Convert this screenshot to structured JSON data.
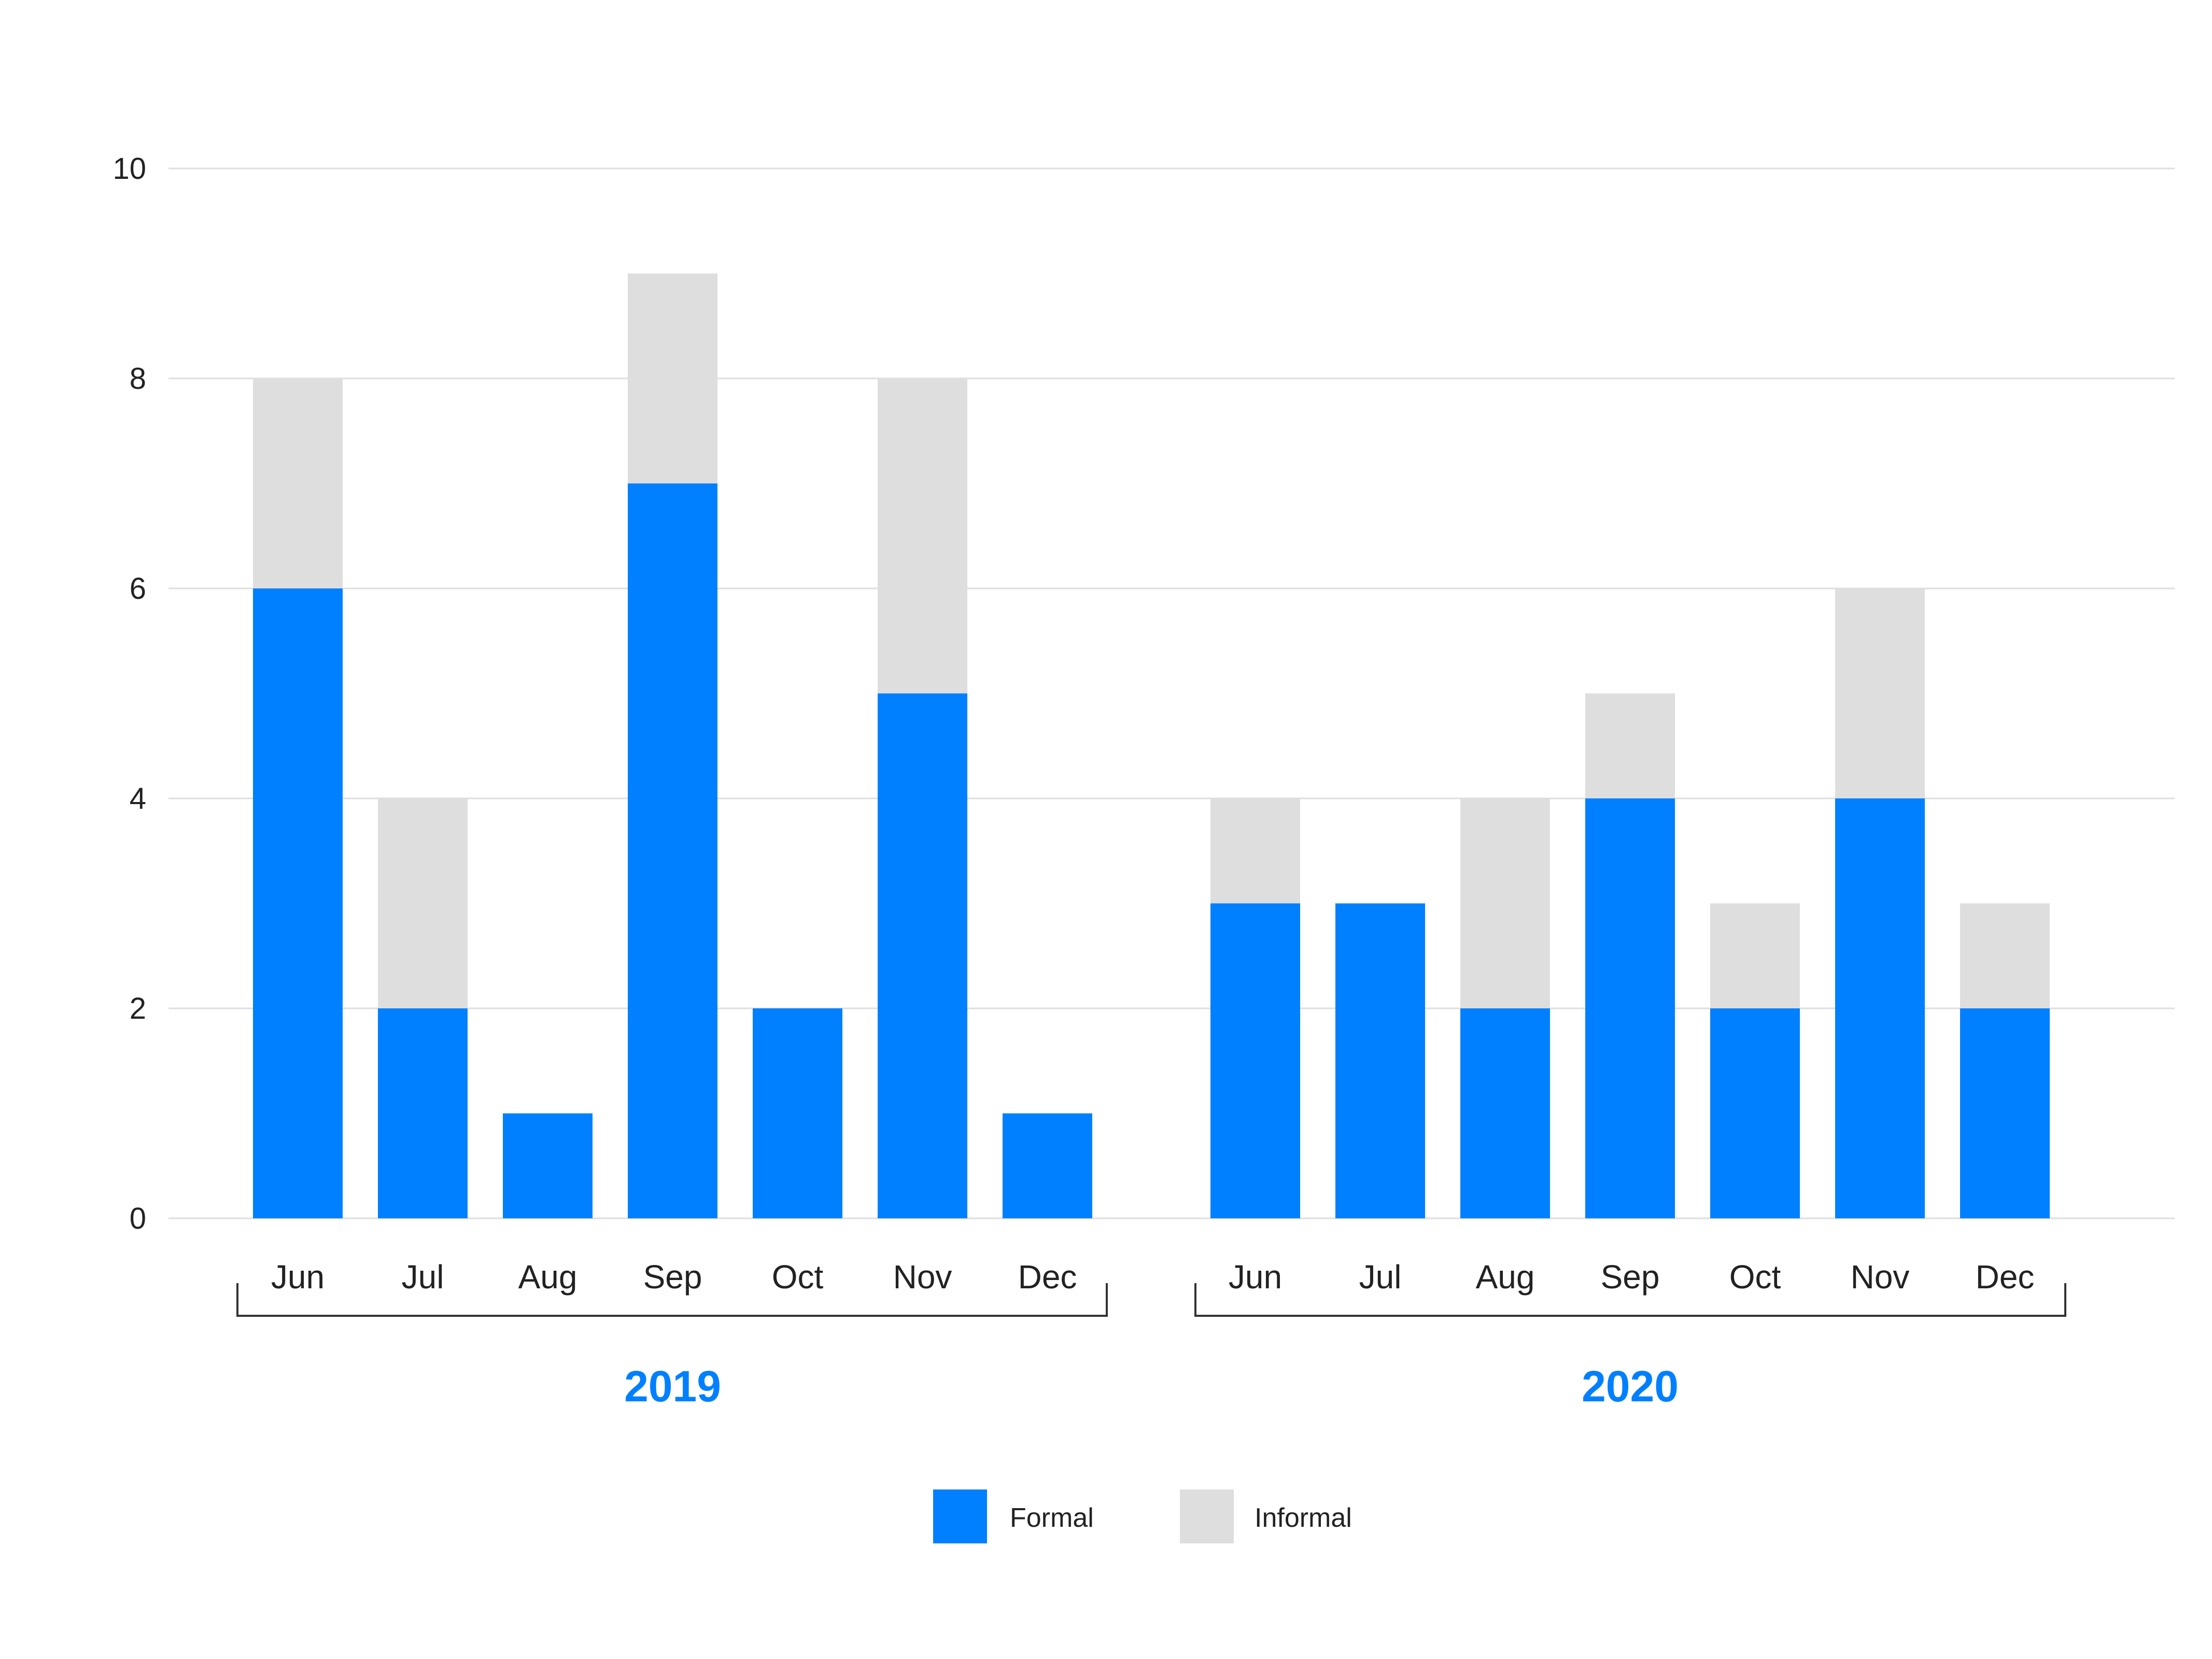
{
  "chart_data": {
    "type": "bar",
    "stacked": true,
    "groups": [
      {
        "label": "2019",
        "categories": [
          "Jun",
          "Jul",
          "Aug",
          "Sep",
          "Oct",
          "Nov",
          "Dec"
        ],
        "series": [
          {
            "name": "Formal",
            "values": [
              6,
              2,
              1,
              7,
              2,
              5,
              1
            ]
          },
          {
            "name": "Informal",
            "values": [
              2,
              2,
              0,
              2,
              0,
              3,
              0
            ]
          }
        ]
      },
      {
        "label": "2020",
        "categories": [
          "Jun",
          "Jul",
          "Aug",
          "Sep",
          "Oct",
          "Nov",
          "Dec"
        ],
        "series": [
          {
            "name": "Formal",
            "values": [
              3,
              3,
              2,
              4,
              2,
              4,
              2
            ]
          },
          {
            "name": "Informal",
            "values": [
              1,
              0,
              2,
              1,
              1,
              2,
              1
            ]
          }
        ]
      }
    ],
    "ylim": [
      0,
      10
    ],
    "yticks": [
      "0",
      "2",
      "4",
      "6",
      "8",
      "10"
    ],
    "grid": true,
    "legend": {
      "position": "bottom-center",
      "items": [
        {
          "name": "Formal",
          "color": "#0080ff"
        },
        {
          "name": "Informal",
          "color": "#dedede"
        }
      ]
    },
    "colors": {
      "Formal": "#0080ff",
      "Informal": "#dedede",
      "group_label": "#0080ff"
    }
  }
}
